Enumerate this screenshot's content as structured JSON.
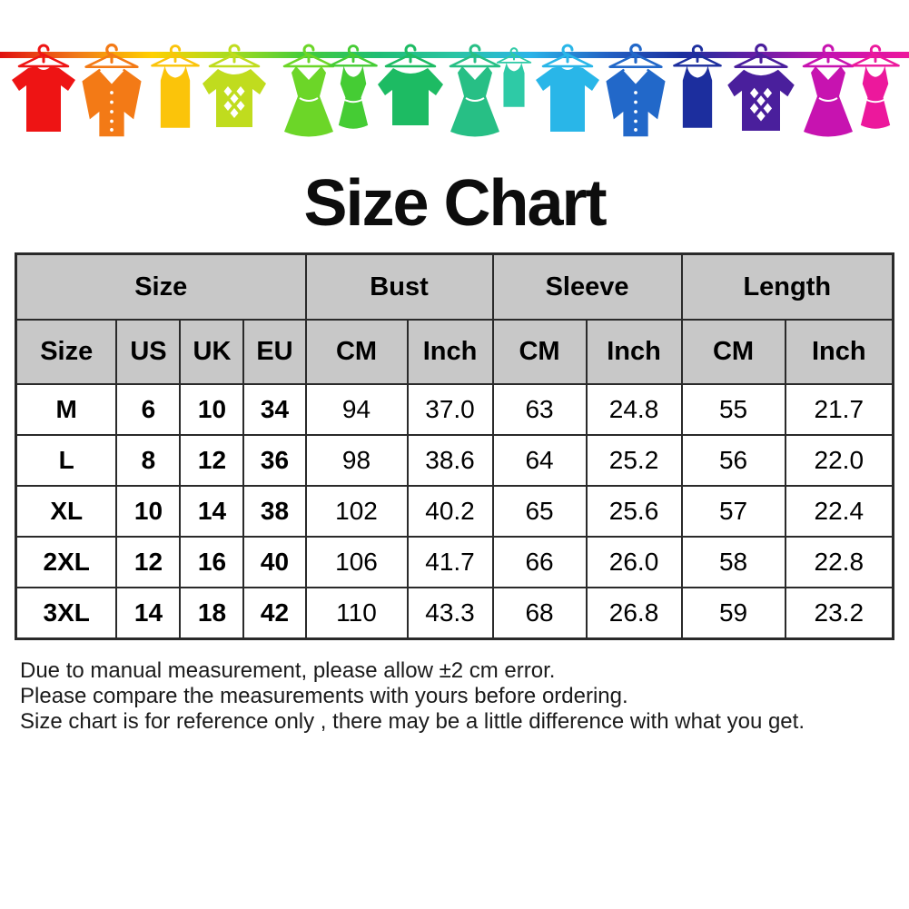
{
  "title": "Size Chart",
  "banner": {
    "items": [
      {
        "name": "t-shirt",
        "color": "#ee1414"
      },
      {
        "name": "shirt",
        "color": "#f37a16"
      },
      {
        "name": "tank-top",
        "color": "#fbc40a"
      },
      {
        "name": "argyle-sweater",
        "color": "#c0dc1e"
      },
      {
        "name": "dress",
        "color": "#6cd628"
      },
      {
        "name": "tank-dress",
        "color": "#45cc34"
      },
      {
        "name": "sweater",
        "color": "#1dbb63"
      },
      {
        "name": "dress",
        "color": "#27bf85"
      },
      {
        "name": "tank-top",
        "color": "#2ecaa6"
      },
      {
        "name": "t-shirt",
        "color": "#29b6e8"
      },
      {
        "name": "shirt",
        "color": "#2268c9"
      },
      {
        "name": "tank-top",
        "color": "#1c2e9e"
      },
      {
        "name": "argyle-sweater",
        "color": "#4a1f9c"
      },
      {
        "name": "dress",
        "color": "#c713b0"
      },
      {
        "name": "tank-dress",
        "color": "#ec189c"
      }
    ],
    "line_gradient": [
      "#e01010",
      "#f07818",
      "#ffd000",
      "#aadc1e",
      "#44cc3a",
      "#1fbd74",
      "#2ac4a4",
      "#2ab4e8",
      "#2362c4",
      "#1b2f9e",
      "#6a1da5",
      "#c513af",
      "#ee189c"
    ]
  },
  "table": {
    "groups": [
      {
        "label": "Size",
        "span": 4
      },
      {
        "label": "Bust",
        "span": 2
      },
      {
        "label": "Sleeve",
        "span": 2
      },
      {
        "label": "Length",
        "span": 2
      }
    ],
    "columns": [
      "Size",
      "US",
      "UK",
      "EU",
      "CM",
      "Inch",
      "CM",
      "Inch",
      "CM",
      "Inch"
    ],
    "rows": [
      [
        "M",
        "6",
        "10",
        "34",
        "94",
        "37.0",
        "63",
        "24.8",
        "55",
        "21.7"
      ],
      [
        "L",
        "8",
        "12",
        "36",
        "98",
        "38.6",
        "64",
        "25.2",
        "56",
        "22.0"
      ],
      [
        "XL",
        "10",
        "14",
        "38",
        "102",
        "40.2",
        "65",
        "25.6",
        "57",
        "22.4"
      ],
      [
        "2XL",
        "12",
        "16",
        "40",
        "106",
        "41.7",
        "66",
        "26.0",
        "58",
        "22.8"
      ],
      [
        "3XL",
        "14",
        "18",
        "42",
        "110",
        "43.3",
        "68",
        "26.8",
        "59",
        "23.2"
      ]
    ],
    "header_bg": "#c8c8c8",
    "border_color": "#2a2a2a"
  },
  "notes": [
    "Due to manual measurement, please allow ±2 cm error.",
    "Please compare the measurements with yours before ordering.",
    "Size chart is for reference only , there may be a little difference with what you get."
  ]
}
